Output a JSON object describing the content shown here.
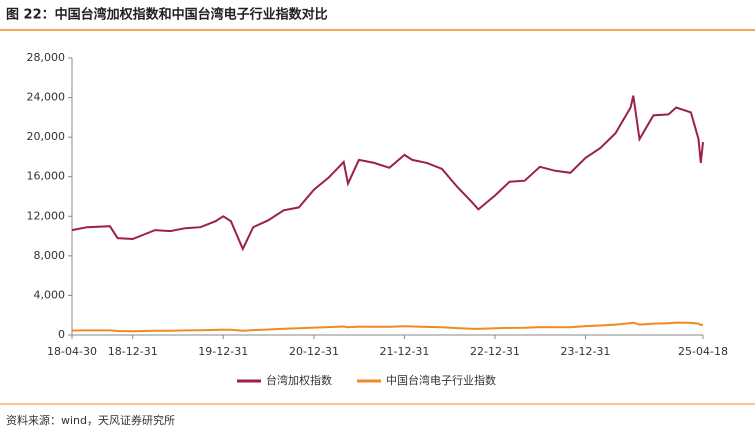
{
  "chart_data": {
    "type": "line",
    "title": "图 22：中国台湾加权指数和中国台湾电子行业指数对比",
    "source": "资料来源：wind，天风证券研究所",
    "x": [
      "18-04-30",
      "18-06-30",
      "18-09-30",
      "18-10-31",
      "18-12-31",
      "19-03-31",
      "19-05-31",
      "19-07-31",
      "19-09-30",
      "19-11-30",
      "19-12-31",
      "20-01-31",
      "20-03-19",
      "20-04-30",
      "20-06-30",
      "20-08-31",
      "20-10-31",
      "20-12-31",
      "21-02-28",
      "21-04-30",
      "21-05-17",
      "21-06-30",
      "21-08-31",
      "21-10-31",
      "21-12-31",
      "22-01-31",
      "22-03-31",
      "22-05-31",
      "22-07-31",
      "22-09-30",
      "22-10-25",
      "22-12-31",
      "23-02-28",
      "23-04-30",
      "23-06-30",
      "23-08-31",
      "23-10-31",
      "23-12-31",
      "24-02-29",
      "24-04-30",
      "24-06-30",
      "24-07-11",
      "24-08-05",
      "24-09-30",
      "24-11-30",
      "24-12-31",
      "25-02-28",
      "25-03-31",
      "25-04-09",
      "25-04-18"
    ],
    "series": [
      {
        "name": "台湾加权指数",
        "color": "#9b2242",
        "values": [
          10600,
          10900,
          11000,
          9800,
          9700,
          10600,
          10500,
          10800,
          10900,
          11500,
          12000,
          11500,
          8700,
          10900,
          11600,
          12600,
          12900,
          14700,
          15900,
          17500,
          15300,
          17700,
          17400,
          16900,
          18200,
          17700,
          17400,
          16800,
          15000,
          13400,
          12700,
          14100,
          15500,
          15600,
          17000,
          16600,
          16400,
          17900,
          18900,
          20400,
          23000,
          24200,
          19800,
          22200,
          22300,
          23000,
          22500,
          19800,
          17400,
          19500
        ]
      },
      {
        "name": "中国台湾电子行业指数",
        "color": "#f08a24",
        "values": [
          450,
          460,
          470,
          400,
          380,
          420,
          430,
          460,
          480,
          520,
          550,
          530,
          420,
          500,
          560,
          640,
          680,
          750,
          800,
          860,
          790,
          850,
          840,
          830,
          880,
          860,
          820,
          780,
          700,
          640,
          620,
          680,
          720,
          730,
          800,
          790,
          780,
          900,
          960,
          1050,
          1200,
          1250,
          1050,
          1150,
          1180,
          1250,
          1220,
          1150,
          1000,
          1050
        ]
      }
    ],
    "xlim": [
      "18-04-30",
      "25-04-18"
    ],
    "xticks": [
      "18-04-30",
      "18-12-31",
      "19-12-31",
      "20-12-31",
      "21-12-31",
      "22-12-31",
      "23-12-31",
      "25-04-18"
    ],
    "ylim": [
      0,
      28000
    ],
    "yticks": [
      0,
      {
        "value": 4000,
        "label": "4,000"
      },
      {
        "value": 8000,
        "label": "8,000"
      },
      {
        "value": 12000,
        "label": "12,000"
      },
      {
        "value": 16000,
        "label": "16,000"
      },
      {
        "value": 20000,
        "label": "20,000"
      },
      {
        "value": 24000,
        "label": "24,000"
      },
      {
        "value": 28000,
        "label": "28,000"
      }
    ]
  }
}
